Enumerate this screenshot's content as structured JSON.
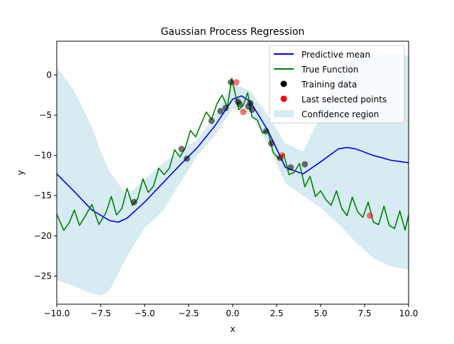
{
  "chart_data": {
    "type": "line",
    "title": "Gaussian Process Regression",
    "xlabel": "x",
    "ylabel": "y",
    "xlim": [
      -10,
      10
    ],
    "ylim": [
      -28.5,
      4.2
    ],
    "xticks": [
      -10,
      -7.5,
      -5,
      -2.5,
      0,
      2.5,
      5,
      7.5,
      10
    ],
    "xtick_labels": [
      "−10.0",
      "−7.5",
      "−5.0",
      "−2.5",
      "0.0",
      "2.5",
      "5.0",
      "7.5",
      "10.0"
    ],
    "yticks": [
      0,
      -5,
      -10,
      -15,
      -20,
      -25
    ],
    "ytick_labels": [
      "0",
      "−5",
      "−10",
      "−15",
      "−20",
      "−25"
    ],
    "grid": false,
    "legend_position": "top-right",
    "colors": {
      "mean": "#0000ff",
      "true": "#008000",
      "training": "#000000",
      "last": "#ff0000",
      "confidence": "#add8e6"
    },
    "series": [
      {
        "name": "Predictive mean",
        "x": [
          -10,
          -9,
          -8,
          -7,
          -6.5,
          -6,
          -5,
          -4,
          -3,
          -2,
          -1,
          0,
          0.5,
          1,
          2,
          3,
          4,
          5,
          6,
          6.5,
          7,
          8,
          9,
          10
        ],
        "y": [
          -12.3,
          -14.5,
          -16.8,
          -18.1,
          -18.3,
          -17.8,
          -15.8,
          -13.5,
          -11.2,
          -9.0,
          -6.3,
          -3.0,
          -2.6,
          -3.3,
          -6.9,
          -11.5,
          -12.3,
          -10.8,
          -9.2,
          -9.0,
          -9.2,
          -10.0,
          -10.6,
          -10.9
        ]
      },
      {
        "name": "True Function",
        "x": [
          -10,
          -9.6,
          -9.3,
          -9.0,
          -8.7,
          -8.4,
          -8.0,
          -7.6,
          -7.2,
          -6.9,
          -6.6,
          -6.3,
          -6.0,
          -5.7,
          -5.4,
          -5.1,
          -4.8,
          -4.5,
          -4.2,
          -3.9,
          -3.6,
          -3.3,
          -3.0,
          -2.7,
          -2.4,
          -2.1,
          -1.8,
          -1.5,
          -1.2,
          -0.9,
          -0.6,
          -0.3,
          -0.05,
          0.15,
          0.35,
          0.6,
          0.85,
          1.1,
          1.4,
          1.7,
          2.0,
          2.3,
          2.6,
          2.9,
          3.2,
          3.5,
          3.8,
          4.1,
          4.4,
          4.7,
          5.0,
          5.3,
          5.6,
          5.9,
          6.2,
          6.5,
          6.8,
          7.1,
          7.4,
          7.7,
          8.0,
          8.3,
          8.6,
          8.9,
          9.2,
          9.5,
          9.8,
          10
        ],
        "y": [
          -17.3,
          -19.3,
          -18.4,
          -16.8,
          -18.7,
          -17.6,
          -16.1,
          -18.6,
          -17.1,
          -15.1,
          -17.4,
          -16.6,
          -14.1,
          -16.2,
          -15.4,
          -12.9,
          -14.6,
          -13.8,
          -11.6,
          -12.4,
          -11.6,
          -9.3,
          -10.2,
          -9.1,
          -6.9,
          -7.7,
          -6.1,
          -4.6,
          -5.5,
          -3.6,
          -2.5,
          -4.0,
          -0.4,
          -2.4,
          -4.3,
          -3.8,
          -2.2,
          -5.2,
          -5.6,
          -7.2,
          -6.9,
          -9.6,
          -10.4,
          -9.8,
          -12.4,
          -12.1,
          -11.0,
          -13.9,
          -12.6,
          -15.1,
          -14.4,
          -15.5,
          -16.2,
          -14.4,
          -16.6,
          -17.5,
          -15.2,
          -17.0,
          -17.7,
          -15.8,
          -18.3,
          -18.6,
          -16.3,
          -18.7,
          -19.1,
          -16.9,
          -19.3,
          -17.4
        ]
      },
      {
        "name": "Confidence region",
        "x": [
          -10,
          -9,
          -8,
          -7.5,
          -7,
          -6,
          -5,
          -4,
          -3,
          -2,
          -1,
          0,
          1,
          2,
          3,
          4,
          5,
          6,
          7,
          8,
          9,
          10
        ],
        "upper": [
          1.0,
          -2.0,
          -6.5,
          -9.5,
          -12.0,
          -15.0,
          -13.0,
          -11.0,
          -9.5,
          -8.0,
          -5.0,
          -1.0,
          -2.0,
          -5.0,
          -8.5,
          -9.5,
          -5.0,
          0.5,
          2.5,
          2.8,
          2.6,
          2.4
        ],
        "lower": [
          -25.5,
          -26.3,
          -27.2,
          -27.4,
          -26.8,
          -22.5,
          -19.0,
          -17.0,
          -13.5,
          -10.0,
          -7.5,
          -4.2,
          -4.8,
          -8.5,
          -13.5,
          -15.0,
          -16.5,
          -18.5,
          -20.8,
          -22.8,
          -23.8,
          -24.2
        ]
      }
    ],
    "training_data": {
      "name": "Training data",
      "points": [
        [
          -5.6,
          -15.8
        ],
        [
          -2.9,
          -9.2
        ],
        [
          -2.6,
          -10.4
        ],
        [
          -1.2,
          -5.7
        ],
        [
          -0.7,
          -4.5
        ],
        [
          -0.4,
          -4.1
        ],
        [
          -0.1,
          -0.9
        ],
        [
          0.3,
          -3.3
        ],
        [
          0.4,
          -3.6
        ],
        [
          0.9,
          -3.9
        ],
        [
          1.0,
          -3.5
        ],
        [
          1.1,
          -4.3
        ],
        [
          1.9,
          -7.0
        ],
        [
          2.2,
          -8.5
        ],
        [
          2.7,
          -10.3
        ],
        [
          3.3,
          -11.5
        ],
        [
          4.1,
          -11.1
        ]
      ]
    },
    "last_selected": {
      "name": "Last selected points",
      "points": [
        [
          0.2,
          -0.9
        ],
        [
          0.6,
          -4.6
        ],
        [
          2.8,
          -10.0
        ],
        [
          7.8,
          -17.5
        ]
      ]
    },
    "legend": [
      "Predictive mean",
      "True Function",
      "Training data",
      "Last selected points",
      "Confidence region"
    ]
  }
}
